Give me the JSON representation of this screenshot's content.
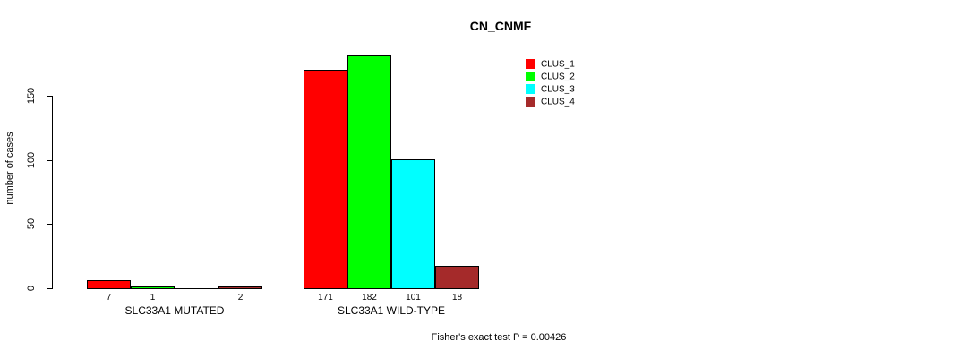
{
  "title": "CN_CNMF",
  "y_axis": {
    "label": "number of cases",
    "ticks": [
      "0",
      "50",
      "100",
      "150"
    ]
  },
  "footer": "Fisher's exact test P = 0.00426",
  "legend": {
    "position": "top-right",
    "items": [
      {
        "label": "CLUS_1",
        "color": "#ff0000"
      },
      {
        "label": "CLUS_2",
        "color": "#00ff00"
      },
      {
        "label": "CLUS_3",
        "color": "#00ffff"
      },
      {
        "label": "CLUS_4",
        "color": "#a52a2a"
      }
    ]
  },
  "chart_data": {
    "type": "bar",
    "title": "CN_CNMF",
    "xlabel": "",
    "ylabel": "number of cases",
    "ylim": [
      0,
      190
    ],
    "yticks": [
      0,
      50,
      100,
      150
    ],
    "grid": false,
    "legend_position": "top-right",
    "categories": [
      "SLC33A1 MUTATED",
      "SLC33A1 WILD-TYPE"
    ],
    "series": [
      {
        "name": "CLUS_1",
        "color": "#ff0000",
        "values": [
          7,
          171
        ]
      },
      {
        "name": "CLUS_2",
        "color": "#00ff00",
        "values": [
          1,
          182
        ]
      },
      {
        "name": "CLUS_3",
        "color": "#00ffff",
        "values": [
          0,
          101
        ]
      },
      {
        "name": "CLUS_4",
        "color": "#a52a2a",
        "values": [
          2,
          18
        ]
      }
    ],
    "bar_value_labels": [
      [
        7,
        1,
        0,
        2
      ],
      [
        171,
        182,
        101,
        18
      ]
    ],
    "zero_value_labels_hidden": true,
    "annotation": "Fisher's exact test P = 0.00426"
  }
}
